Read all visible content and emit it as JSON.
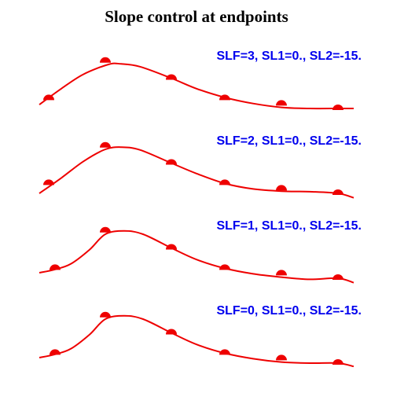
{
  "title": "Slope control at endpoints",
  "colors": {
    "title": "#000000",
    "label": "#0000ee",
    "curve": "#ee0000",
    "marker": "#ee0000",
    "background": "#ffffff"
  },
  "chart_data": [
    {
      "type": "line",
      "label": "SLF=3, SL1=0., SL2=-15.",
      "xlim": [
        0,
        1
      ],
      "ylim": [
        0,
        1
      ],
      "points": [
        [
          0.03,
          0.18
        ],
        [
          0.21,
          0.86
        ],
        [
          0.42,
          0.55
        ],
        [
          0.59,
          0.18
        ],
        [
          0.77,
          0.08
        ],
        [
          0.95,
          0.0
        ]
      ],
      "curve": [
        [
          0.0,
          0.07
        ],
        [
          0.07,
          0.36
        ],
        [
          0.14,
          0.62
        ],
        [
          0.22,
          0.8
        ],
        [
          0.26,
          0.81
        ],
        [
          0.32,
          0.76
        ],
        [
          0.42,
          0.55
        ],
        [
          0.5,
          0.36
        ],
        [
          0.59,
          0.2
        ],
        [
          0.68,
          0.09
        ],
        [
          0.77,
          0.02
        ],
        [
          0.86,
          0.0
        ],
        [
          0.95,
          0.0
        ],
        [
          1.0,
          0.0
        ]
      ]
    },
    {
      "type": "line",
      "label": "SLF=2, SL1=0., SL2=-15.",
      "xlim": [
        0,
        1
      ],
      "ylim": [
        0,
        1
      ],
      "points": [
        [
          0.03,
          0.18
        ],
        [
          0.21,
          0.86
        ],
        [
          0.42,
          0.55
        ],
        [
          0.59,
          0.18
        ],
        [
          0.77,
          0.08
        ],
        [
          0.95,
          0.0
        ]
      ],
      "curve": [
        [
          0.0,
          0.0
        ],
        [
          0.07,
          0.28
        ],
        [
          0.14,
          0.58
        ],
        [
          0.21,
          0.8
        ],
        [
          0.26,
          0.84
        ],
        [
          0.32,
          0.79
        ],
        [
          0.42,
          0.55
        ],
        [
          0.5,
          0.36
        ],
        [
          0.59,
          0.18
        ],
        [
          0.68,
          0.08
        ],
        [
          0.77,
          0.04
        ],
        [
          0.86,
          0.03
        ],
        [
          0.95,
          0.0
        ],
        [
          1.0,
          -0.08
        ]
      ]
    },
    {
      "type": "line",
      "label": "SLF=1, SL1=0., SL2=-15.",
      "xlim": [
        0,
        1
      ],
      "ylim": [
        0,
        1
      ],
      "points": [
        [
          0.05,
          0.18
        ],
        [
          0.21,
          0.86
        ],
        [
          0.42,
          0.55
        ],
        [
          0.59,
          0.18
        ],
        [
          0.77,
          0.08
        ],
        [
          0.95,
          0.0
        ]
      ],
      "curve": [
        [
          0.0,
          0.1
        ],
        [
          0.05,
          0.16
        ],
        [
          0.1,
          0.26
        ],
        [
          0.16,
          0.52
        ],
        [
          0.21,
          0.8
        ],
        [
          0.27,
          0.86
        ],
        [
          0.33,
          0.8
        ],
        [
          0.42,
          0.55
        ],
        [
          0.5,
          0.34
        ],
        [
          0.59,
          0.18
        ],
        [
          0.68,
          0.08
        ],
        [
          0.77,
          0.02
        ],
        [
          0.86,
          -0.02
        ],
        [
          0.95,
          0.0
        ],
        [
          1.0,
          -0.08
        ]
      ]
    },
    {
      "type": "line",
      "label": "SLF=0, SL1=0., SL2=-15.",
      "xlim": [
        0,
        1
      ],
      "ylim": [
        0,
        1
      ],
      "points": [
        [
          0.05,
          0.18
        ],
        [
          0.21,
          0.86
        ],
        [
          0.42,
          0.55
        ],
        [
          0.59,
          0.18
        ],
        [
          0.77,
          0.08
        ],
        [
          0.95,
          0.0
        ]
      ],
      "curve": [
        [
          0.0,
          0.1
        ],
        [
          0.05,
          0.16
        ],
        [
          0.1,
          0.26
        ],
        [
          0.16,
          0.52
        ],
        [
          0.21,
          0.8
        ],
        [
          0.27,
          0.86
        ],
        [
          0.33,
          0.8
        ],
        [
          0.42,
          0.55
        ],
        [
          0.5,
          0.34
        ],
        [
          0.59,
          0.18
        ],
        [
          0.68,
          0.08
        ],
        [
          0.77,
          0.02
        ],
        [
          0.86,
          0.0
        ],
        [
          0.95,
          0.0
        ],
        [
          1.0,
          -0.06
        ]
      ]
    }
  ]
}
